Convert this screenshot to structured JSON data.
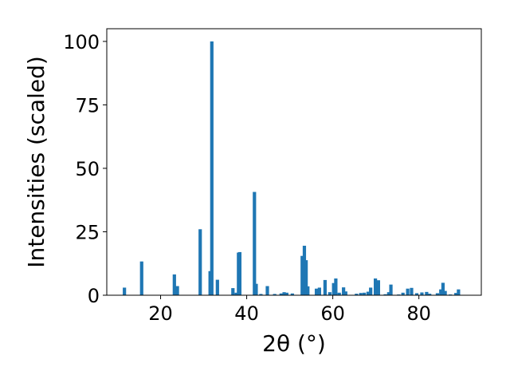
{
  "chart_data": {
    "type": "bar",
    "xlabel": "2θ (°)",
    "ylabel": "Intensities (scaled)",
    "xlim": [
      7.5,
      94.5
    ],
    "ylim": [
      0,
      105
    ],
    "x_ticks": [
      20,
      40,
      60,
      80
    ],
    "y_ticks": [
      0,
      25,
      50,
      75,
      100
    ],
    "bar_color": "#1f77b4",
    "grid": false,
    "legend": "none",
    "series": [
      {
        "x": [
          11.6,
          15.6,
          23.2,
          23.9,
          29.2,
          31.5,
          31.9,
          33.2,
          36.8,
          37.6,
          38.1,
          38.4,
          41.8,
          42.2,
          43.3,
          44.8,
          46.5,
          48.0,
          48.7,
          49.3,
          50.6,
          52.9,
          53.4,
          53.8,
          54.2,
          56.2,
          56.9,
          58.2,
          59.3,
          60.2,
          60.7,
          61.5,
          62.5,
          63.0,
          65.5,
          66.5,
          67.3,
          68.2,
          68.8,
          69.9,
          70.6,
          72.2,
          73.0,
          73.5,
          75.3,
          76.3,
          77.4,
          78.3,
          79.5,
          80.7,
          81.8,
          82.5,
          84.3,
          85.1,
          85.6,
          86.1,
          87.3,
          88.6,
          89.2
        ],
        "values": [
          3.0,
          13.3,
          8.2,
          3.6,
          26.0,
          9.5,
          100.0,
          6.1,
          2.8,
          1.0,
          16.8,
          17.0,
          40.7,
          4.5,
          0.5,
          3.6,
          0.5,
          0.7,
          1.2,
          1.0,
          0.7,
          15.5,
          19.5,
          13.8,
          3.5,
          2.6,
          3.0,
          6.0,
          1.2,
          4.8,
          6.6,
          1.0,
          3.1,
          1.5,
          0.6,
          0.9,
          1.0,
          1.4,
          3.0,
          6.6,
          5.9,
          0.4,
          1.2,
          4.2,
          0.3,
          1.0,
          2.6,
          2.9,
          0.8,
          1.1,
          1.3,
          0.6,
          0.8,
          2.3,
          4.9,
          1.7,
          0.3,
          0.9,
          2.3
        ]
      }
    ]
  }
}
